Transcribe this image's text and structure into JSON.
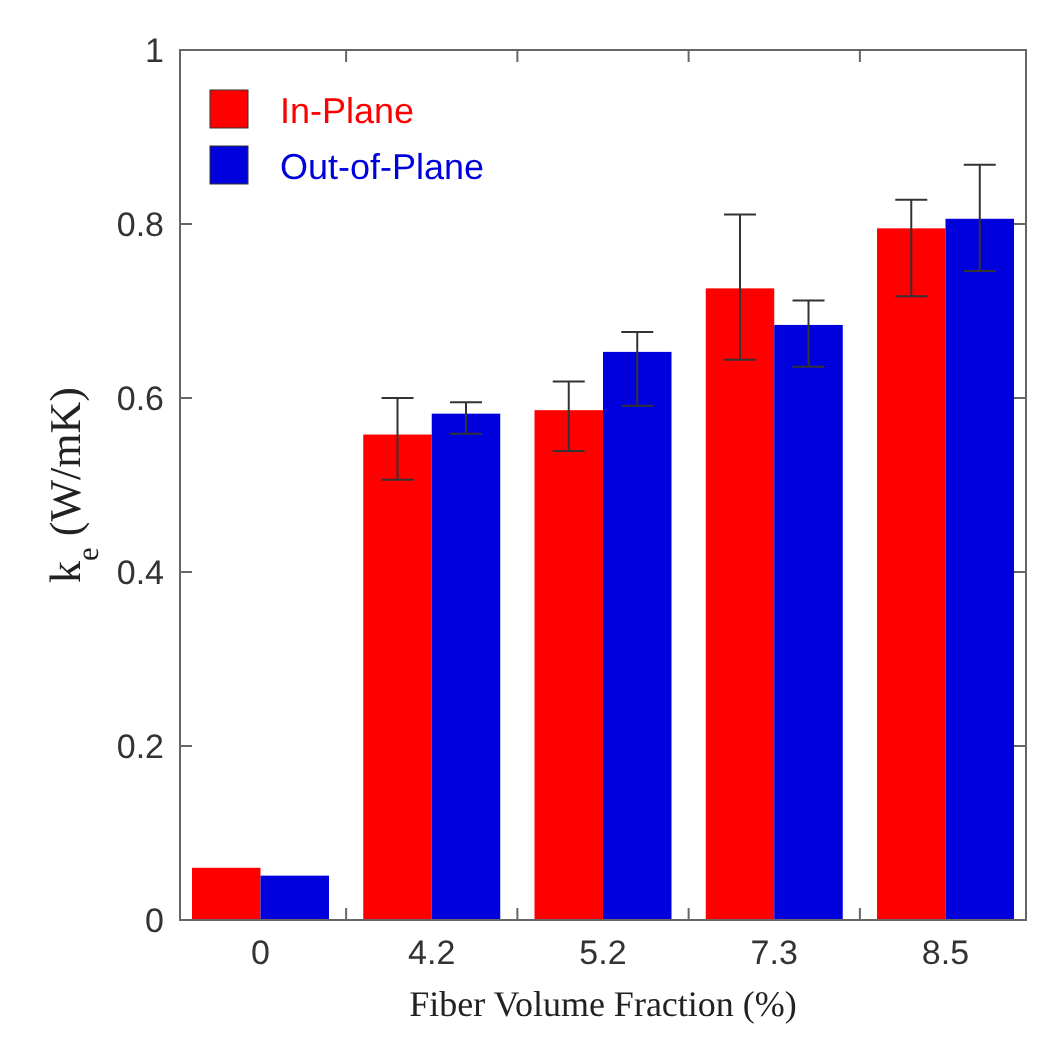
{
  "chart_data": {
    "type": "bar",
    "xlabel": "Fiber Volume Fraction (%)",
    "ylabel": "k$_{e}$ (W/mK)",
    "categories": [
      "0",
      "4.2",
      "5.2",
      "7.3",
      "8.5"
    ],
    "series": [
      {
        "name": "In-Plane",
        "color": "#ff0000",
        "values": [
          0.06,
          0.558,
          0.586,
          0.726,
          0.795
        ],
        "errors": [
          null,
          [
            0.506,
            0.6
          ],
          [
            0.539,
            0.619
          ],
          [
            0.644,
            0.811
          ],
          [
            0.717,
            0.828
          ]
        ]
      },
      {
        "name": "Out-of-Plane",
        "color": "#0000dd",
        "values": [
          0.051,
          0.582,
          0.653,
          0.684,
          0.806
        ],
        "errors": [
          null,
          [
            0.559,
            0.595
          ],
          [
            0.591,
            0.676
          ],
          [
            0.636,
            0.712
          ],
          [
            0.746,
            0.868
          ]
        ]
      }
    ],
    "ylim": [
      0,
      1
    ],
    "yticks": [
      0,
      0.2,
      0.4,
      0.6,
      0.8,
      1
    ],
    "grid": false,
    "legend": "top left"
  }
}
